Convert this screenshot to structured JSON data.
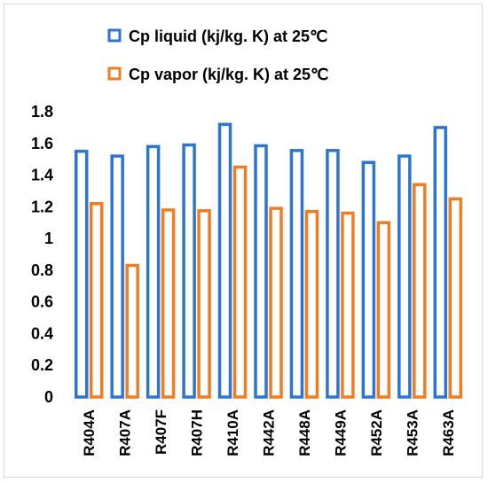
{
  "chart_data": {
    "type": "bar",
    "categories": [
      "R404A",
      "R407A",
      "R407F",
      "R407H",
      "R410A",
      "R442A",
      "R448A",
      "R449A",
      "R452A",
      "R453A",
      "R463A"
    ],
    "series": [
      {
        "name": "Cp liquid (kj/kg. K) at 25℃",
        "color": "#2E75D0",
        "values": [
          1.55,
          1.52,
          1.58,
          1.59,
          1.72,
          1.585,
          1.555,
          1.555,
          1.48,
          1.52,
          1.7
        ]
      },
      {
        "name": "Cp vapor (kj/kg. K) at 25℃",
        "color": "#F07D22",
        "values": [
          1.22,
          0.83,
          1.18,
          1.175,
          1.45,
          1.19,
          1.17,
          1.16,
          1.1,
          1.34,
          1.25
        ]
      }
    ],
    "yticks": [
      "0",
      "0.2",
      "0.4",
      "0.6",
      "0.8",
      "1",
      "1.2",
      "1.4",
      "1.6",
      "1.8"
    ],
    "ylim": [
      0,
      1.8
    ],
    "bar_style": "outlined",
    "grid": false,
    "legend_position": "top",
    "title": "",
    "xlabel": "",
    "ylabel": ""
  }
}
